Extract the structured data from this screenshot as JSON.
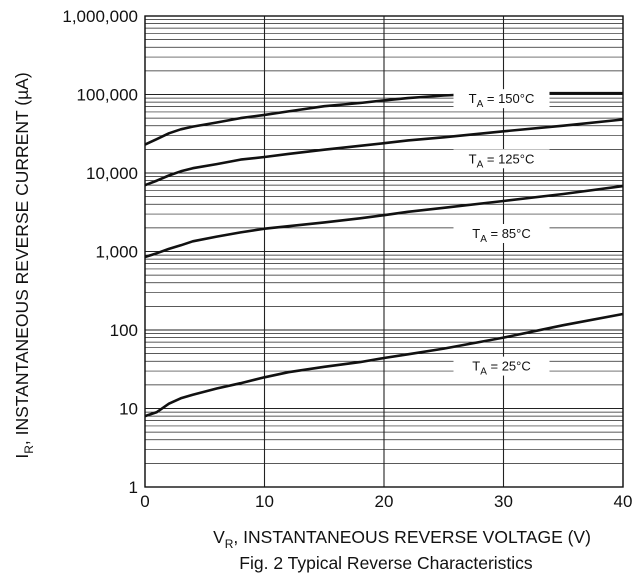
{
  "chart_data": {
    "type": "line",
    "title": "",
    "caption": "Fig. 2 Typical Reverse Characteristics",
    "xlabel": {
      "main": "V",
      "sub": "R",
      "rest": ", INSTANTANEOUS REVERSE VOLTAGE (V)"
    },
    "ylabel": {
      "main": "I",
      "sub": "R",
      "rest": ", INSTANTANEOUS REVERSE CURRENT (µA)"
    },
    "xlim": [
      0,
      40
    ],
    "ylim": [
      1,
      1000000
    ],
    "yscale": "log",
    "grid": true,
    "xticks": [
      {
        "value": 0,
        "label": "0"
      },
      {
        "value": 10,
        "label": "10"
      },
      {
        "value": 20,
        "label": "20"
      },
      {
        "value": 30,
        "label": "30"
      },
      {
        "value": 40,
        "label": "40"
      }
    ],
    "yticks": [
      {
        "value": 1,
        "label": "1"
      },
      {
        "value": 10,
        "label": "10"
      },
      {
        "value": 100,
        "label": "100"
      },
      {
        "value": 1000,
        "label": "1,000"
      },
      {
        "value": 10000,
        "label": "10,000"
      },
      {
        "value": 100000,
        "label": "100,000"
      },
      {
        "value": 1000000,
        "label": "1,000,000"
      }
    ],
    "series": [
      {
        "label": {
          "main": "T",
          "sub": "A",
          "rest": " = 150°C"
        },
        "x": [
          0,
          1,
          2,
          3,
          4,
          6,
          8,
          10,
          12,
          15,
          18,
          20,
          22,
          25,
          28,
          30,
          35,
          40
        ],
        "y": [
          23000,
          27000,
          32000,
          36000,
          39000,
          44000,
          50000,
          55000,
          61000,
          71000,
          78000,
          84000,
          90000,
          97000,
          102000,
          104000,
          104000,
          104000
        ]
      },
      {
        "label": {
          "main": "T",
          "sub": "A",
          "rest": " = 125°C"
        },
        "x": [
          0,
          1,
          2,
          3,
          4,
          6,
          8,
          10,
          12,
          15,
          18,
          20,
          22,
          25,
          30,
          35,
          40
        ],
        "y": [
          7000,
          8000,
          9300,
          10500,
          11500,
          13000,
          14800,
          16000,
          17500,
          19800,
          22200,
          24000,
          26000,
          28500,
          34000,
          40000,
          48000
        ]
      },
      {
        "label": {
          "main": "T",
          "sub": "A",
          "rest": " = 85°C"
        },
        "x": [
          0,
          1,
          2,
          3,
          4,
          6,
          8,
          10,
          12,
          15,
          18,
          20,
          22,
          25,
          30,
          35,
          40
        ],
        "y": [
          850,
          950,
          1080,
          1200,
          1350,
          1550,
          1750,
          1950,
          2100,
          2350,
          2650,
          2900,
          3200,
          3600,
          4400,
          5400,
          6800
        ]
      },
      {
        "label": {
          "main": "T",
          "sub": "A",
          "rest": " = 25°C"
        },
        "x": [
          0,
          1,
          2,
          3,
          4,
          6,
          8,
          10,
          12,
          15,
          18,
          20,
          22,
          25,
          30,
          35,
          40
        ],
        "y": [
          8,
          9,
          11.5,
          13.5,
          15,
          18,
          21,
          25,
          29,
          34,
          39,
          44,
          49,
          58,
          80,
          115,
          160
        ]
      }
    ],
    "colors": {
      "line": "#111111",
      "grid": "#222222",
      "background": "#ffffff"
    }
  }
}
